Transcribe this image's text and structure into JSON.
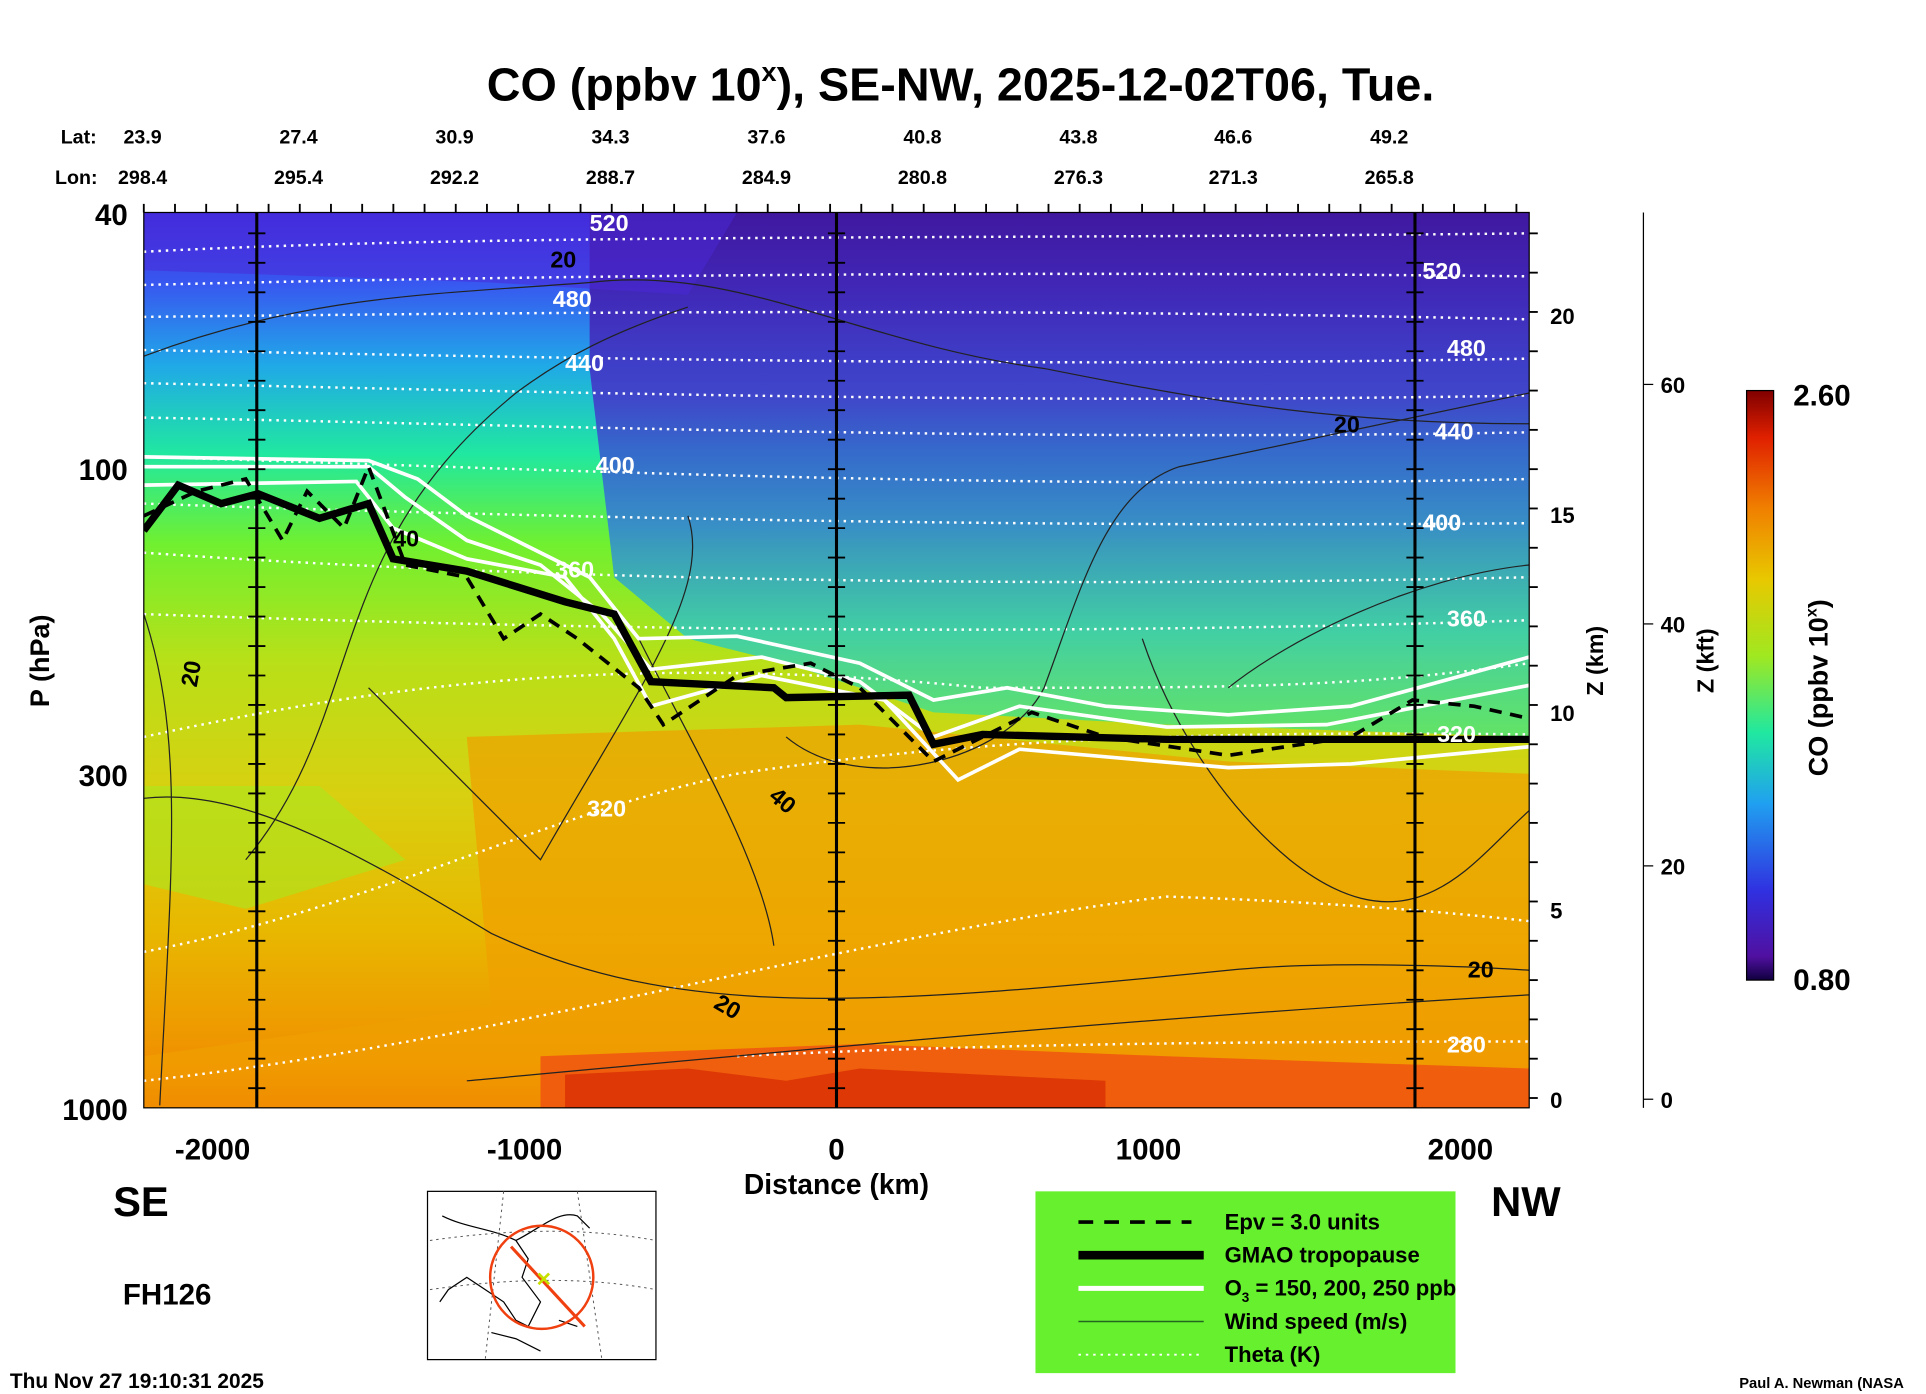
{
  "chart_data": {
    "type": "heatmap",
    "title": "CO (ppbv 10",
    "title_sup": "x",
    "title_rest": "), SE-NW, 2025-12-02T06, Tue.",
    "lat_label": "Lat:",
    "lon_label": "Lon:",
    "lat": [
      "23.9",
      "27.4",
      "30.9",
      "34.3",
      "37.6",
      "40.8",
      "43.8",
      "46.6",
      "49.2"
    ],
    "lon": [
      "298.4",
      "295.4",
      "292.2",
      "288.7",
      "284.9",
      "280.8",
      "276.3",
      "271.3",
      "265.8"
    ],
    "xlabel": "Distance (km)",
    "xticks": [
      "-2000",
      "-1000",
      "0",
      "1000",
      "2000"
    ],
    "xlim": [
      -2220,
      2220
    ],
    "ylabel": "P (hPa)",
    "yticks": [
      "40",
      "100",
      "300",
      "1000"
    ],
    "ylim": [
      1000,
      40
    ],
    "z_km_label": "Z (km)",
    "z_km_ticks": [
      "0",
      "5",
      "10",
      "15",
      "20"
    ],
    "z_kft_label": "Z (kft)",
    "z_kft_ticks": [
      "0",
      "20",
      "40",
      "60"
    ],
    "colorbar": {
      "label": "CO (ppbv 10",
      "label_sup": "x",
      "label_end": ")",
      "max": "2.60",
      "min": "0.80"
    },
    "left_end": "SE",
    "right_end": "NW",
    "theta_labels": [
      "520",
      "480",
      "440",
      "400",
      "360",
      "320",
      "520",
      "480",
      "440",
      "400",
      "360",
      "320",
      "280"
    ],
    "wind_labels": [
      "20",
      "40",
      "20",
      "40",
      "20",
      "20",
      "20"
    ],
    "legend": [
      {
        "label": "Epv = 3.0 units",
        "style": "dashed"
      },
      {
        "label": "GMAO tropopause",
        "style": "thick"
      },
      {
        "label": "O",
        "sub": "3",
        "rest": " = 150, 200, 250 ppb",
        "style": "white"
      },
      {
        "label": "Wind speed (m/s)",
        "style": "thin"
      },
      {
        "label": "Theta (K)",
        "style": "dotted"
      }
    ],
    "forecast_hour": "FH126",
    "timestamp": "Thu Nov 27 19:10:31 2025",
    "credit": "Paul A. Newman (NASA",
    "colors": {
      "legend_bg": "#66f02e",
      "tropopause": "#000000",
      "ozone": "#ffffff"
    }
  }
}
